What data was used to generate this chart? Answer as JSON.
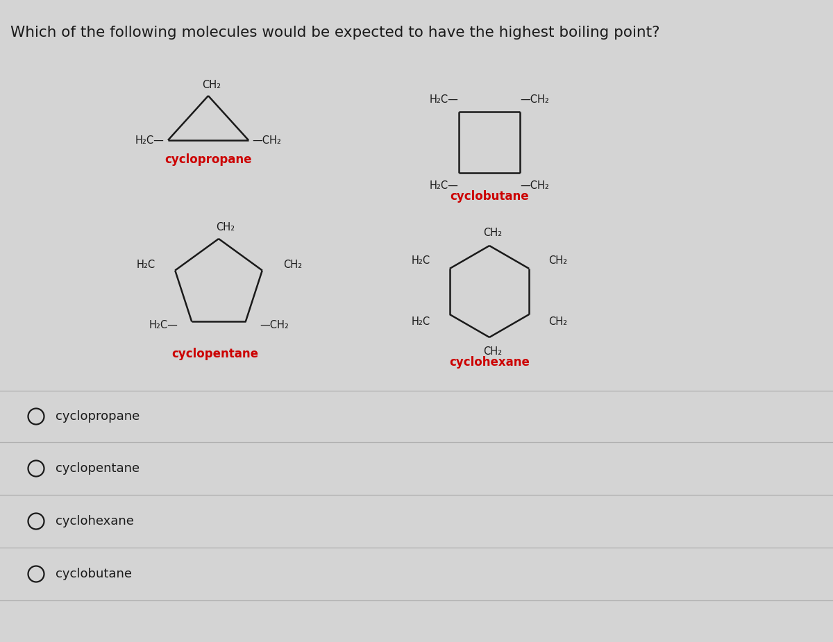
{
  "title": "Which of the following molecules would be expected to have the highest boiling point?",
  "title_fontsize": 15.5,
  "title_color": "#1a1a1a",
  "background_color": "#d4d4d4",
  "bond_color": "#1a1a1a",
  "label_color": "#1a1a1a",
  "name_color": "#cc0000",
  "answer_color": "#1a1a1a",
  "answer_circle_color": "#1a1a1a",
  "ch2_fontsize": 10.5,
  "name_fontsize": 12,
  "answer_fontsize": 13,
  "answers": [
    "cyclopropane",
    "cyclopentane",
    "cyclohexane",
    "cyclobutane"
  ]
}
